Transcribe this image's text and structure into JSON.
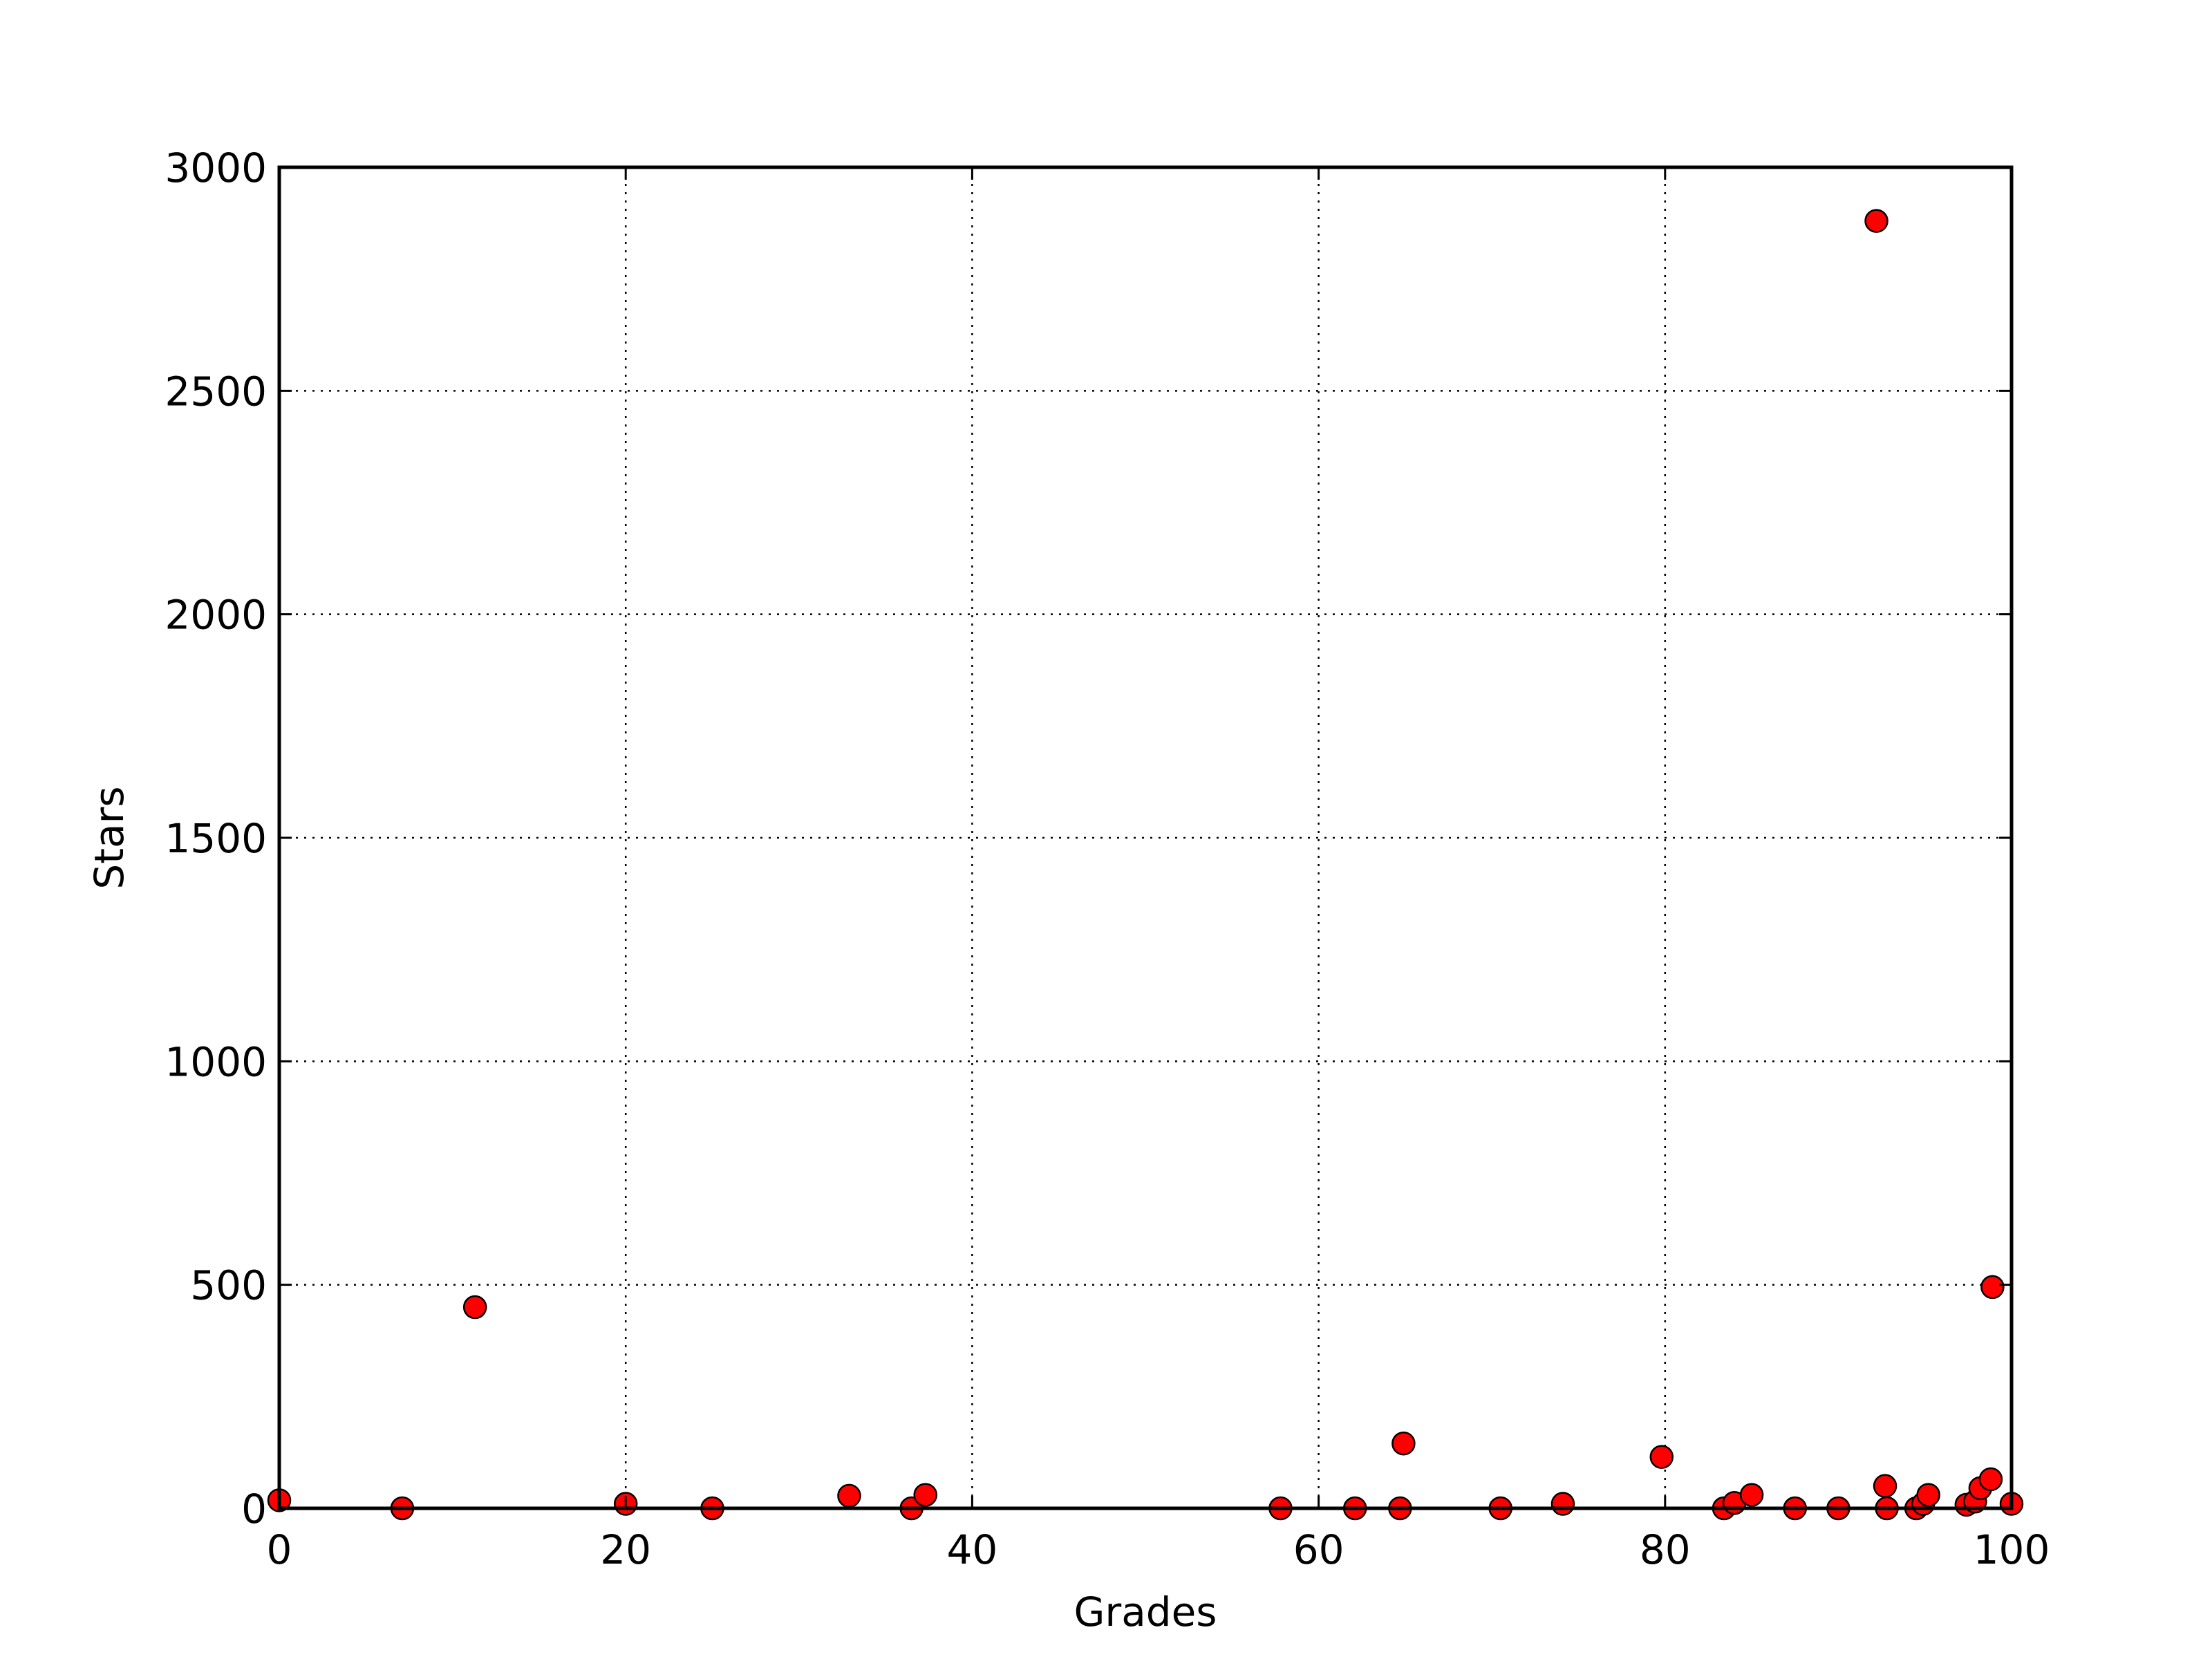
{
  "chart_data": {
    "type": "scatter",
    "title": "",
    "xlabel": "Grades",
    "ylabel": "Stars",
    "xlim": [
      0,
      100
    ],
    "ylim": [
      0,
      3000
    ],
    "xticks": [
      0,
      20,
      40,
      60,
      80,
      100
    ],
    "yticks": [
      0,
      500,
      1000,
      1500,
      2000,
      2500,
      3000
    ],
    "xtick_labels": [
      "0",
      "20",
      "40",
      "60",
      "80",
      "100"
    ],
    "ytick_labels": [
      "0",
      "500",
      "1000",
      "1500",
      "2000",
      "2500",
      "3000"
    ],
    "grid": true,
    "marker_color": "#ff0000",
    "marker_edge_color": "#000000",
    "series": [
      {
        "points": [
          {
            "x": 0,
            "y": 18
          },
          {
            "x": 7.1,
            "y": 0
          },
          {
            "x": 11.3,
            "y": 450
          },
          {
            "x": 20,
            "y": 10
          },
          {
            "x": 25,
            "y": 0
          },
          {
            "x": 32.9,
            "y": 28
          },
          {
            "x": 36.5,
            "y": 0
          },
          {
            "x": 37.3,
            "y": 30
          },
          {
            "x": 57.8,
            "y": 0
          },
          {
            "x": 62.1,
            "y": 0
          },
          {
            "x": 64.7,
            "y": 0
          },
          {
            "x": 64.9,
            "y": 145
          },
          {
            "x": 70.5,
            "y": 0
          },
          {
            "x": 74.1,
            "y": 10
          },
          {
            "x": 79.8,
            "y": 115
          },
          {
            "x": 83.4,
            "y": 0
          },
          {
            "x": 84,
            "y": 12
          },
          {
            "x": 85,
            "y": 30
          },
          {
            "x": 87.5,
            "y": 0
          },
          {
            "x": 90,
            "y": 0
          },
          {
            "x": 92.2,
            "y": 2880
          },
          {
            "x": 92.7,
            "y": 50
          },
          {
            "x": 92.8,
            "y": 0
          },
          {
            "x": 94.5,
            "y": 0
          },
          {
            "x": 94.9,
            "y": 10
          },
          {
            "x": 95.2,
            "y": 30
          },
          {
            "x": 97.4,
            "y": 8
          },
          {
            "x": 97.9,
            "y": 15
          },
          {
            "x": 98.2,
            "y": 45
          },
          {
            "x": 98.8,
            "y": 65
          },
          {
            "x": 98.9,
            "y": 495
          },
          {
            "x": 100,
            "y": 10
          }
        ]
      }
    ]
  }
}
